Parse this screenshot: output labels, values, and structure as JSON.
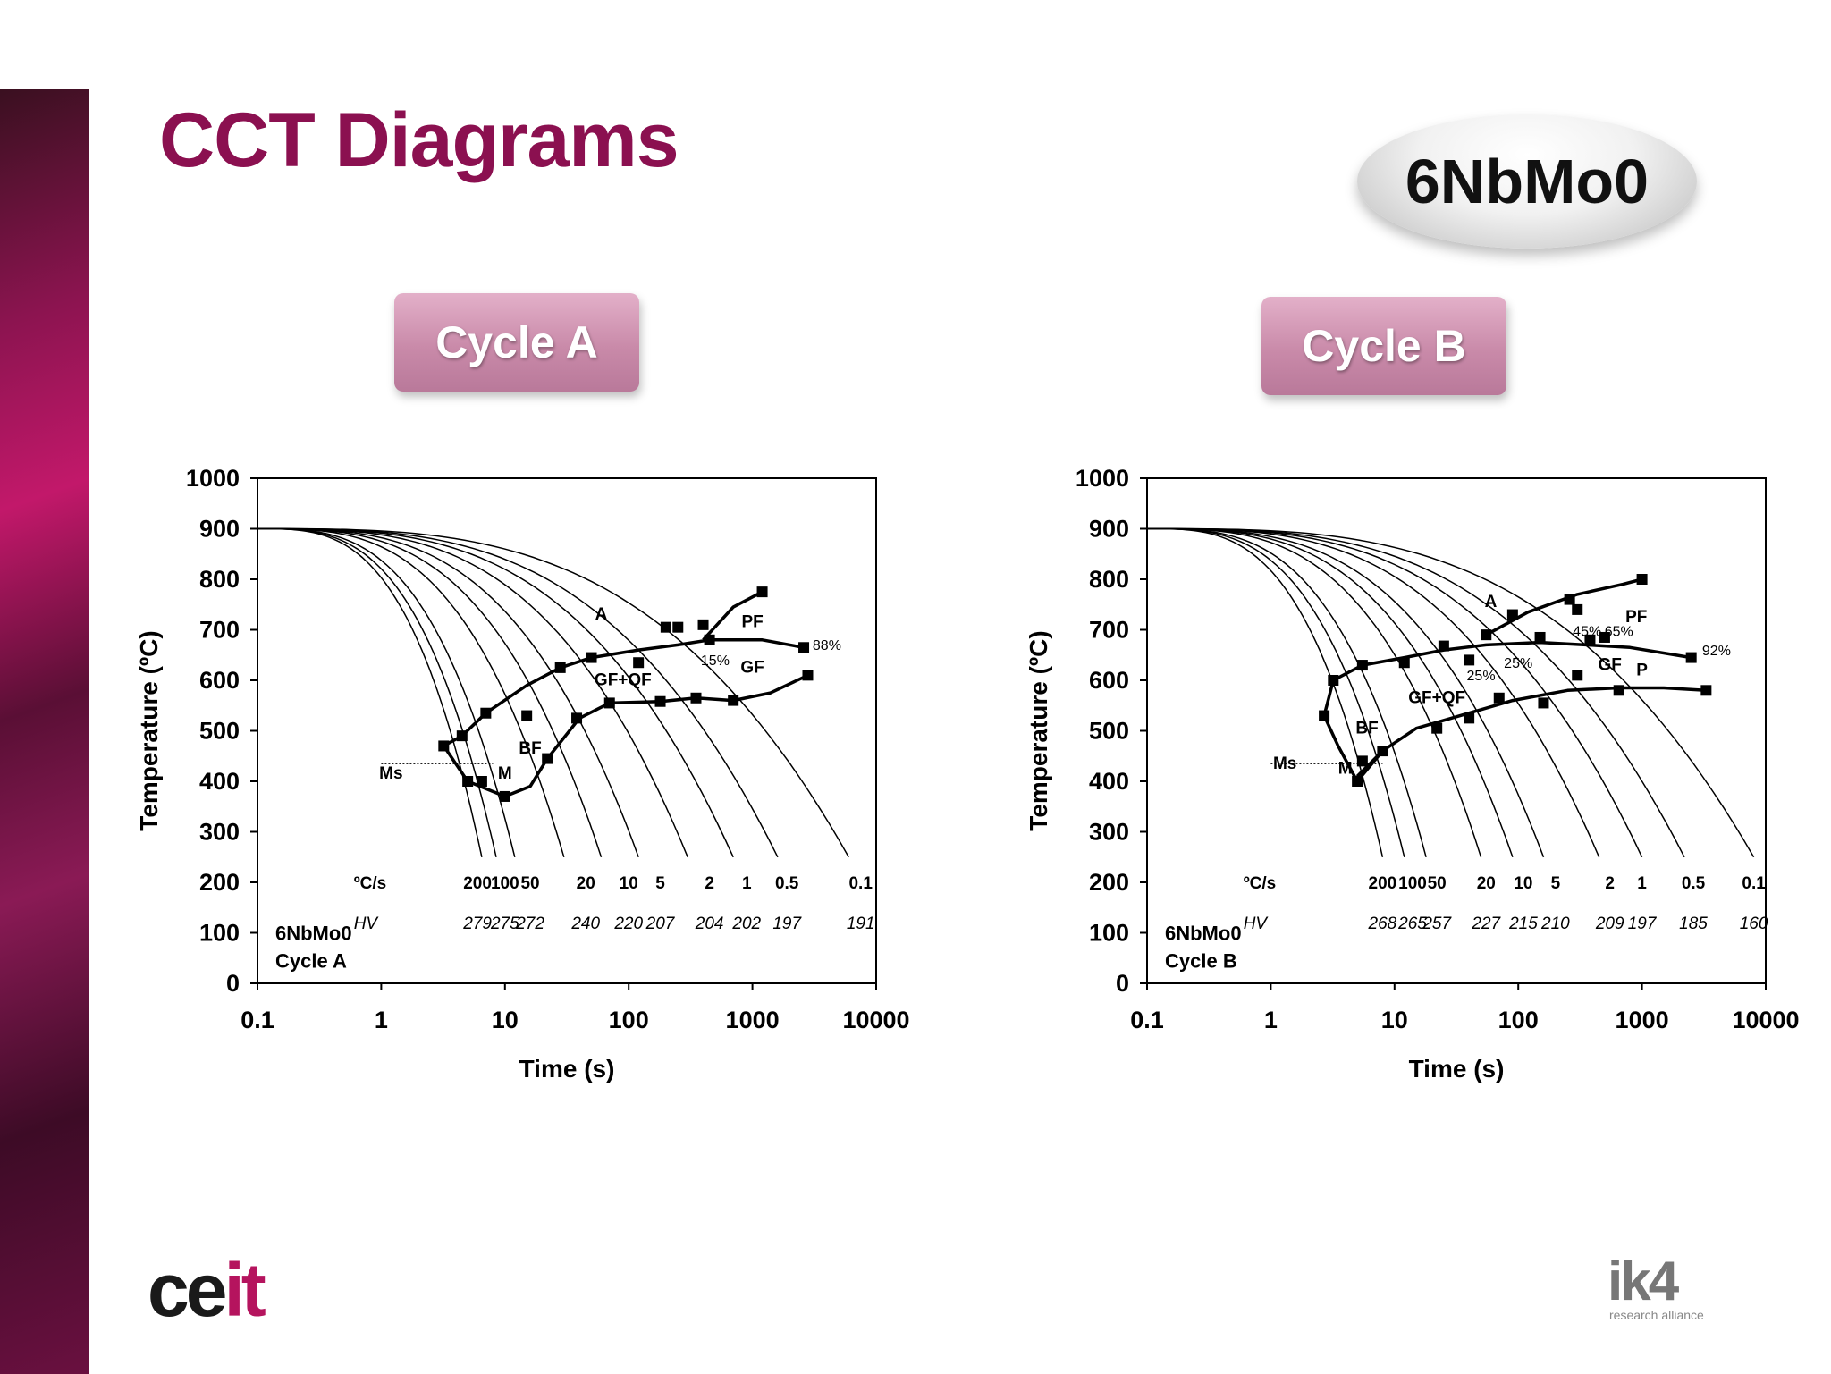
{
  "slide": {
    "title": "CCT Diagrams",
    "steel_badge": "6NbMo0",
    "colors": {
      "title": "#8b1050",
      "sidebar": "#8c1450",
      "cycle_button": "#c98aa9"
    }
  },
  "cycles": [
    {
      "label": "Cycle A"
    },
    {
      "label": "Cycle B"
    }
  ],
  "logos": {
    "ceit_a": "ce",
    "ceit_b": "it",
    "ik4": "ik4",
    "ik4_sub": "research alliance"
  },
  "chart_data": [
    {
      "type": "line",
      "xlabel": "Time (s)",
      "ylabel": "Temperature (ºC)",
      "x_scale": "log",
      "xlim": [
        0.1,
        10000
      ],
      "ylim": [
        0,
        1000
      ],
      "x_ticks": [
        "0.1",
        "1",
        "10",
        "100",
        "1000",
        "10000"
      ],
      "y_ticks": [
        "0",
        "100",
        "200",
        "300",
        "400",
        "500",
        "600",
        "700",
        "800",
        "900",
        "1000"
      ],
      "sample_label": [
        "6NbMo0",
        "Cycle A"
      ],
      "rates_header": "ºC/s",
      "hv_header": "HV",
      "cooling_rates": [
        "200",
        "100",
        "50",
        "20",
        "10",
        "5",
        "2",
        "1",
        "0.5",
        "0.1"
      ],
      "hardness": [
        "279",
        "275",
        "272",
        "240",
        "220",
        "207",
        "204",
        "202",
        "197",
        "191"
      ],
      "rate_label_x": [
        6,
        10,
        16,
        45,
        100,
        180,
        450,
        900,
        1900,
        7500
      ],
      "cooling_curves_end_time": [
        6.5,
        8.5,
        12,
        30,
        60,
        120,
        300,
        700,
        1600,
        6000
      ],
      "phase_labels": [
        {
          "text": "A",
          "t": 60,
          "T": 720
        },
        {
          "text": "PF",
          "t": 1000,
          "T": 705
        },
        {
          "text": "GF",
          "t": 1000,
          "T": 615
        },
        {
          "text": "GF+QF",
          "t": 90,
          "T": 590
        },
        {
          "text": "BF",
          "t": 16,
          "T": 455
        },
        {
          "text": "M",
          "t": 10,
          "T": 405
        },
        {
          "text": "Ms",
          "t": 1.2,
          "T": 405
        },
        {
          "text": "15%",
          "t": 500,
          "T": 630
        },
        {
          "text": "88%",
          "t": 4000,
          "T": 660
        }
      ],
      "series": [
        {
          "name": "A start",
          "x": [
            3.2,
            4.5,
            7,
            15,
            28,
            50,
            120,
            250,
            450,
            1200,
            2600
          ],
          "y": [
            470,
            490,
            535,
            590,
            625,
            645,
            660,
            670,
            680,
            680,
            665
          ]
        },
        {
          "name": "PF start",
          "x": [
            400,
            700,
            1200
          ],
          "y": [
            680,
            745,
            775
          ]
        },
        {
          "name": "GF finish",
          "x": [
            22,
            40,
            70,
            180,
            350,
            700,
            1400,
            2800
          ],
          "y": [
            445,
            525,
            555,
            558,
            565,
            560,
            575,
            610
          ]
        },
        {
          "name": "BF finish",
          "x": [
            3.2,
            5,
            10,
            16,
            22
          ],
          "y": [
            470,
            400,
            370,
            390,
            445
          ]
        }
      ],
      "data_points": {
        "x": [
          3.2,
          4.5,
          7,
          15,
          28,
          50,
          120,
          250,
          450,
          1200,
          2600,
          400,
          200,
          2800,
          5,
          6.5,
          10,
          22,
          38,
          70,
          180,
          350,
          700
        ],
        "y": [
          470,
          490,
          535,
          530,
          625,
          645,
          635,
          705,
          680,
          775,
          665,
          710,
          705,
          610,
          400,
          400,
          370,
          445,
          525,
          555,
          558,
          565,
          560
        ]
      }
    },
    {
      "type": "line",
      "xlabel": "Time (s)",
      "ylabel": "Temperature (ºC)",
      "x_scale": "log",
      "xlim": [
        0.1,
        10000
      ],
      "ylim": [
        0,
        1000
      ],
      "x_ticks": [
        "0.1",
        "1",
        "10",
        "100",
        "1000",
        "10000"
      ],
      "y_ticks": [
        "0",
        "100",
        "200",
        "300",
        "400",
        "500",
        "600",
        "700",
        "800",
        "900",
        "1000"
      ],
      "sample_label": [
        "6NbMo0",
        "Cycle B"
      ],
      "rates_header": "ºC/s",
      "hv_header": "HV",
      "cooling_rates": [
        "200",
        "100",
        "50",
        "20",
        "10",
        "5",
        "2",
        "1",
        "0.5",
        "0.1"
      ],
      "hardness": [
        "268",
        "265",
        "257",
        "227",
        "215",
        "210",
        "209",
        "197",
        "185",
        "160"
      ],
      "rate_label_x": [
        8,
        14,
        22,
        55,
        110,
        200,
        550,
        1000,
        2600,
        8000
      ],
      "cooling_curves_end_time": [
        8,
        12,
        18,
        50,
        90,
        160,
        450,
        1000,
        2200,
        8000
      ],
      "phase_labels": [
        {
          "text": "A",
          "t": 60,
          "T": 745
        },
        {
          "text": "PF",
          "t": 900,
          "T": 715
        },
        {
          "text": "GF",
          "t": 550,
          "T": 620
        },
        {
          "text": "P",
          "t": 1000,
          "T": 610
        },
        {
          "text": "GF+QF",
          "t": 22,
          "T": 555
        },
        {
          "text": "BF",
          "t": 6,
          "T": 495
        },
        {
          "text": "M",
          "t": 4,
          "T": 415
        },
        {
          "text": "Ms",
          "t": 1.3,
          "T": 425
        },
        {
          "text": "45%",
          "t": 360,
          "T": 688
        },
        {
          "text": "65%",
          "t": 650,
          "T": 688
        },
        {
          "text": "25%",
          "t": 50,
          "T": 600
        },
        {
          "text": "25%",
          "t": 100,
          "T": 625
        },
        {
          "text": "92%",
          "t": 4000,
          "T": 650
        }
      ],
      "series": [
        {
          "name": "A start",
          "x": [
            2.7,
            3.2,
            5.5,
            12,
            25,
            55,
            150,
            350,
            800,
            2500
          ],
          "y": [
            530,
            600,
            630,
            645,
            660,
            670,
            675,
            670,
            665,
            645
          ]
        },
        {
          "name": "PF start",
          "x": [
            55,
            120,
            300,
            700,
            1000
          ],
          "y": [
            690,
            735,
            770,
            790,
            800
          ]
        },
        {
          "name": "GF finish",
          "x": [
            5,
            8,
            15,
            40,
            90,
            250,
            650,
            1500,
            3300
          ],
          "y": [
            410,
            460,
            505,
            535,
            560,
            580,
            585,
            585,
            580
          ]
        },
        {
          "name": "BF finish",
          "x": [
            2.7,
            3.5,
            5,
            8
          ],
          "y": [
            530,
            470,
            400,
            460
          ]
        }
      ],
      "data_points": {
        "x": [
          2.7,
          3.2,
          5.5,
          12,
          25,
          55,
          40,
          90,
          150,
          300,
          500,
          1000,
          2500,
          5,
          5.5,
          8,
          22,
          40,
          70,
          160,
          300,
          650,
          3300,
          260,
          380
        ],
        "y": [
          530,
          600,
          630,
          635,
          668,
          690,
          640,
          730,
          685,
          740,
          685,
          800,
          645,
          400,
          440,
          460,
          505,
          525,
          565,
          555,
          610,
          580,
          580,
          760,
          680
        ]
      }
    }
  ]
}
